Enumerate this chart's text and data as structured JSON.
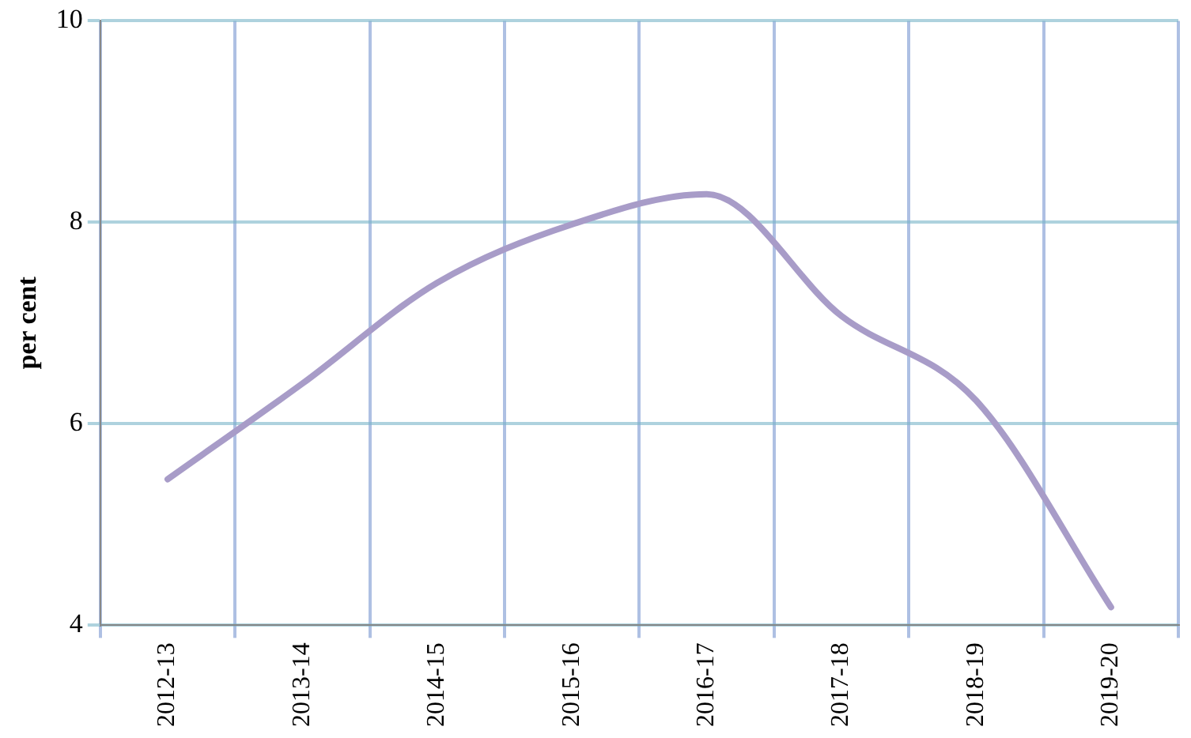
{
  "chart_data": {
    "type": "line",
    "ylabel": "per cent",
    "categories": [
      "2012-13",
      "2013-14",
      "2014-15",
      "2015-16",
      "2016-17",
      "2017-18",
      "2018-19",
      "2019-20"
    ],
    "series": [
      {
        "color": "#a89cc8",
        "values": [
          5.45,
          6.4,
          7.4,
          7.98,
          8.28,
          7.07,
          6.23,
          4.18
        ]
      }
    ],
    "ylim": [
      4,
      10
    ],
    "yticks": [
      4,
      6,
      8,
      10
    ],
    "grid": true,
    "legend": false,
    "marker": "none",
    "line_style": "solid"
  }
}
